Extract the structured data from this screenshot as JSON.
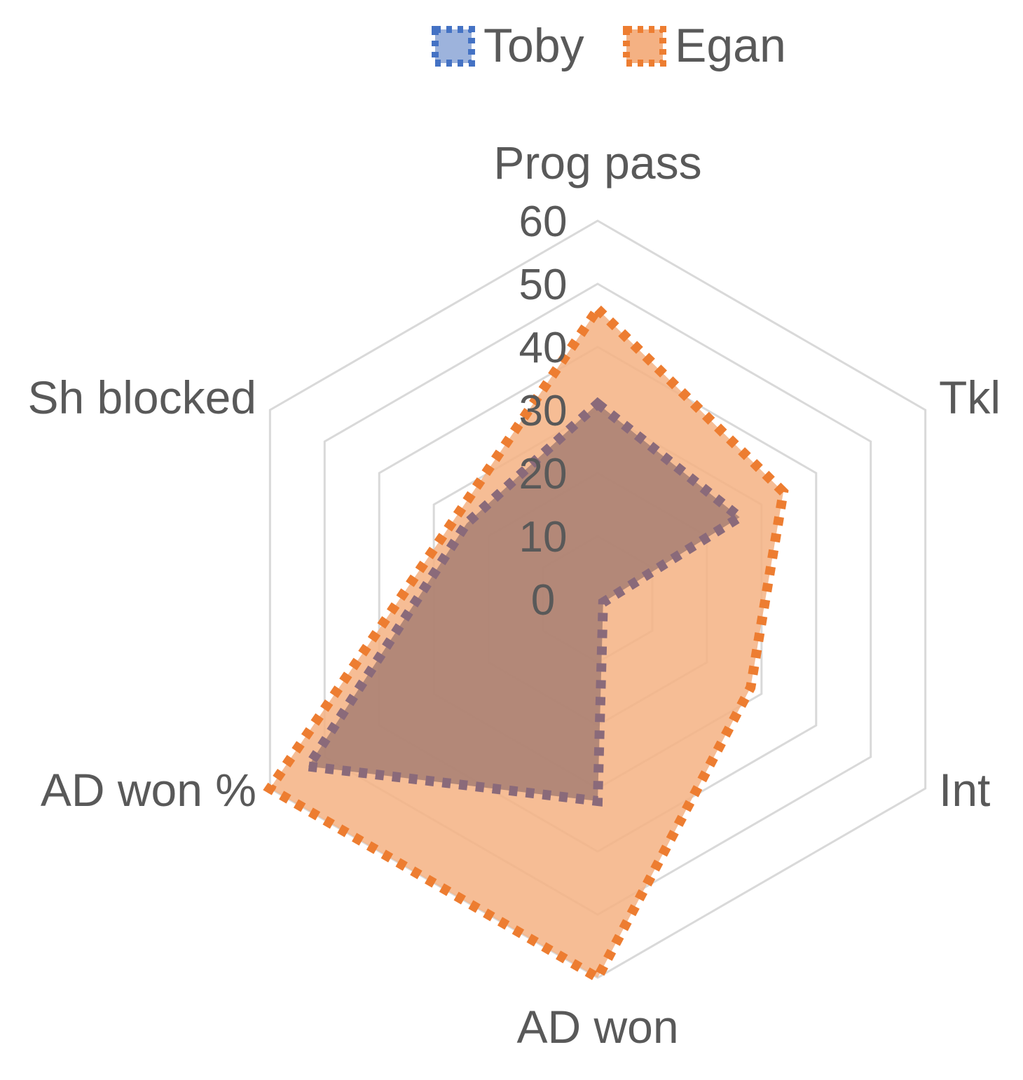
{
  "chart_data": {
    "type": "radar",
    "categories": [
      "Prog pass",
      "Tkl",
      "Int",
      "AD won",
      "AD won %",
      "Sh blocked"
    ],
    "r_ticks": [
      "0",
      "10",
      "20",
      "30",
      "40",
      "50",
      "60"
    ],
    "rlim": [
      0,
      60
    ],
    "grid": true,
    "legend_position": "top",
    "series": [
      {
        "name": "Toby",
        "values": [
          31,
          26,
          1,
          32,
          53,
          24
        ],
        "color": "#4472C4"
      },
      {
        "name": "Egan",
        "values": [
          46,
          34,
          28,
          60,
          60,
          26
        ],
        "color": "#ED7D31"
      }
    ]
  }
}
